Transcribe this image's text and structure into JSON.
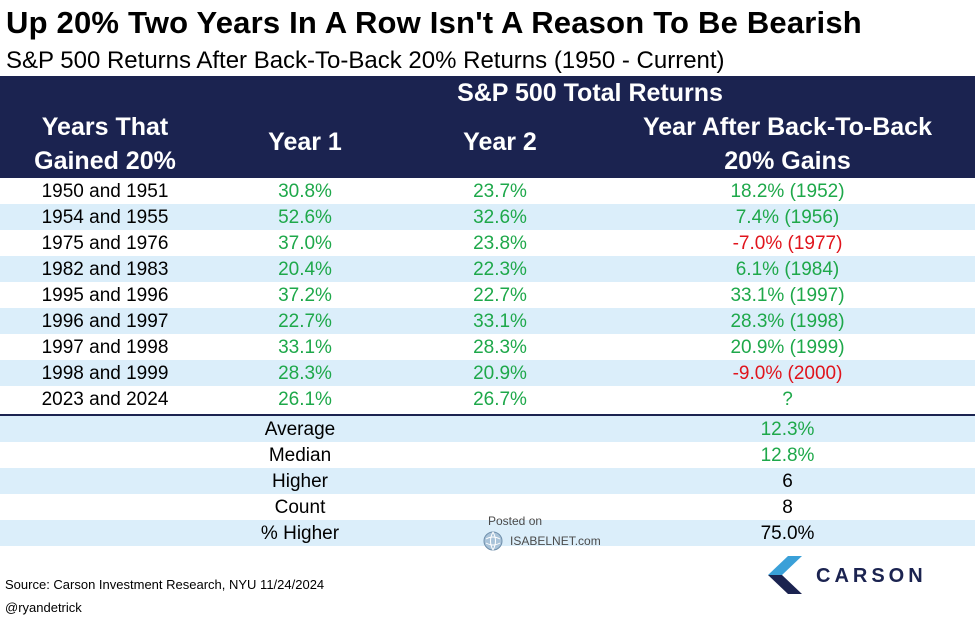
{
  "title": "Up 20% Two Years In A Row Isn't A Reason To Be Bearish",
  "subtitle": "S&P 500 Returns After Back-To-Back 20% Returns (1950 - Current)",
  "header": {
    "group_title": "S&P 500 Total Returns",
    "col0_line1": "Years That",
    "col0_line2": "Gained 20%",
    "col1": "Year 1",
    "col2": "Year 2",
    "col3_line1": "Year After Back-To-Back",
    "col3_line2": "20% Gains"
  },
  "rows": [
    {
      "years": "1950 and 1951",
      "year1": "30.8%",
      "year2": "23.7%",
      "after": "18.2% (1952)",
      "after_sign": "pos"
    },
    {
      "years": "1954 and 1955",
      "year1": "52.6%",
      "year2": "32.6%",
      "after": "7.4% (1956)",
      "after_sign": "pos"
    },
    {
      "years": "1975 and 1976",
      "year1": "37.0%",
      "year2": "23.8%",
      "after": "-7.0% (1977)",
      "after_sign": "neg"
    },
    {
      "years": "1982 and 1983",
      "year1": "20.4%",
      "year2": "22.3%",
      "after": "6.1% (1984)",
      "after_sign": "pos"
    },
    {
      "years": "1995 and 1996",
      "year1": "37.2%",
      "year2": "22.7%",
      "after": "33.1% (1997)",
      "after_sign": "pos"
    },
    {
      "years": "1996 and 1997",
      "year1": "22.7%",
      "year2": "33.1%",
      "after": "28.3% (1998)",
      "after_sign": "pos"
    },
    {
      "years": "1997 and 1998",
      "year1": "33.1%",
      "year2": "28.3%",
      "after": "20.9% (1999)",
      "after_sign": "pos"
    },
    {
      "years": "1998 and 1999",
      "year1": "28.3%",
      "year2": "20.9%",
      "after": "-9.0% (2000)",
      "after_sign": "neg"
    },
    {
      "years": "2023 and 2024",
      "year1": "26.1%",
      "year2": "26.7%",
      "after": "?",
      "after_sign": "pos"
    }
  ],
  "stats": [
    {
      "label": "Average",
      "value": "12.3%",
      "sign": "pos"
    },
    {
      "label": "Median",
      "value": "12.8%",
      "sign": "pos"
    },
    {
      "label": "Higher",
      "value": "6",
      "sign": "neu"
    },
    {
      "label": "Count",
      "value": "8",
      "sign": "neu"
    },
    {
      "label": "% Higher",
      "value": "75.0%",
      "sign": "neu"
    }
  ],
  "watermark": {
    "posted_label": "Posted on",
    "site": "ISABELNET.com"
  },
  "source": "Source: Carson Investment Research, NYU 11/24/2024",
  "handle": "@ryandetrick",
  "logo": {
    "word": "CARSON"
  },
  "colors": {
    "header_bg": "#1b2350",
    "row_shade": "#dbeefa",
    "positive": "#1ea84a",
    "negative": "#e0141c"
  }
}
